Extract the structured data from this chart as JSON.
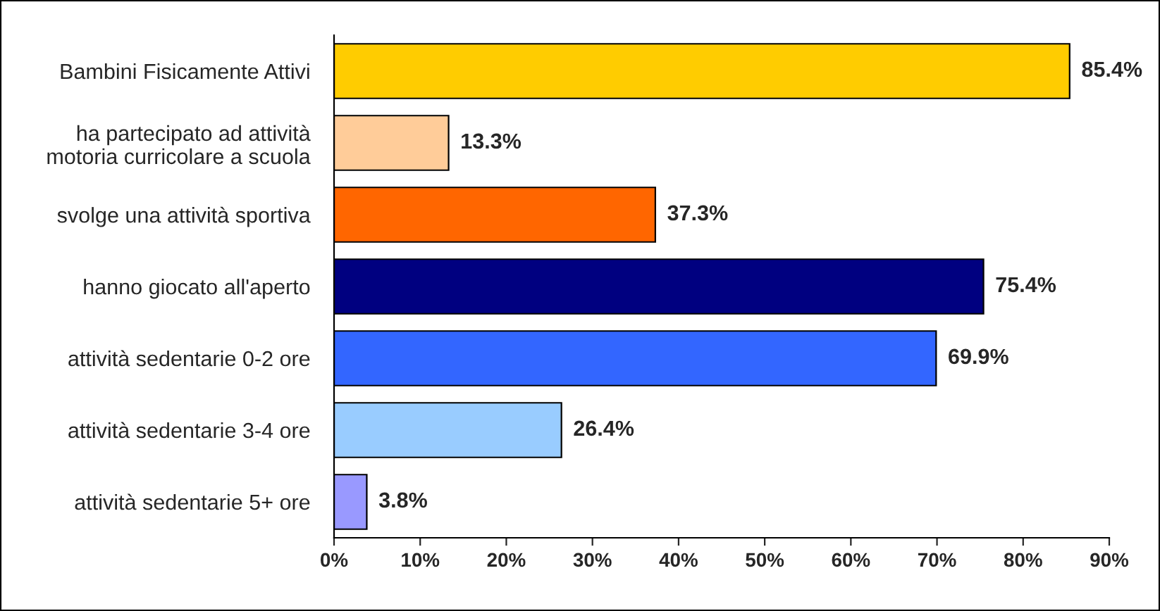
{
  "chart_data": {
    "type": "bar",
    "orientation": "horizontal",
    "categories": [
      "Bambini Fisicamente Attivi",
      "ha partecipato ad attività\nmotoria curricolare a scuola",
      "svolge una attività sportiva",
      "hanno giocato all'aperto",
      "attività sedentarie 0-2 ore",
      "attività sedentarie 3-4 ore",
      "attività sedentarie 5+ ore"
    ],
    "values": [
      85.4,
      13.3,
      37.3,
      75.4,
      69.9,
      26.4,
      3.8
    ],
    "value_labels": [
      "85.4%",
      "13.3%",
      "37.3%",
      "75.4%",
      "69.9%",
      "26.4%",
      "3.8%"
    ],
    "colors": [
      "#ffcc00",
      "#ffcc99",
      "#ff6600",
      "#000080",
      "#3366ff",
      "#99ccff",
      "#9999ff"
    ],
    "xlim": [
      0,
      90
    ],
    "xticks": [
      {
        "value": 0,
        "label": "0%"
      },
      {
        "value": 10,
        "label": "10%"
      },
      {
        "value": 20,
        "label": "20%"
      },
      {
        "value": 30,
        "label": "30%"
      },
      {
        "value": 40,
        "label": "40%"
      },
      {
        "value": 50,
        "label": "50%"
      },
      {
        "value": 60,
        "label": "60%"
      },
      {
        "value": 70,
        "label": "70%"
      },
      {
        "value": 80,
        "label": "80%"
      },
      {
        "value": 90,
        "label": "90%"
      }
    ],
    "grid": false,
    "legend": false
  }
}
